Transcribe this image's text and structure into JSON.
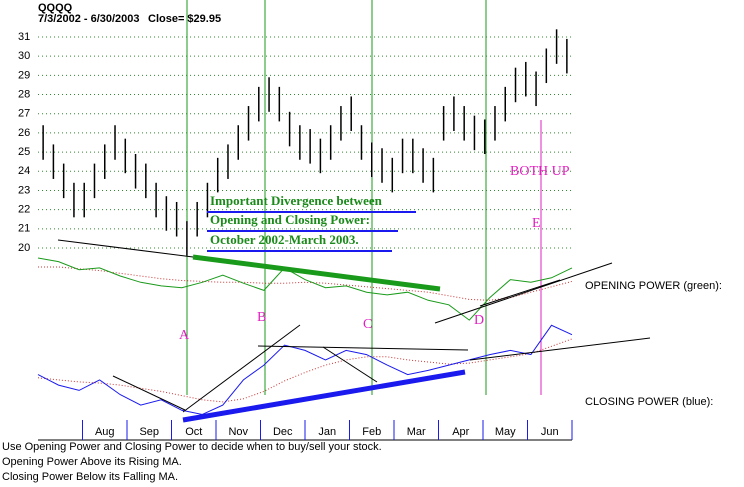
{
  "chart_data": {
    "type": "ohlc",
    "title": "QQQQ",
    "subtitle": "7/3/2002 - 6/30/2003",
    "close_label": "Close= $29.95",
    "high": [
      26.4,
      25.4,
      24.4,
      23.4,
      23.4,
      24.4,
      25.4,
      26.4,
      25.7,
      24.9,
      24.4,
      23.4,
      22.7,
      22.4,
      21.4,
      22.4,
      23.4,
      24.7,
      25.4,
      26.4,
      27.4,
      28.4,
      28.9,
      28.4,
      27.1,
      26.4,
      26.2,
      25.7,
      26.4,
      27.4,
      27.9,
      26.4,
      25.5,
      25.2,
      24.7,
      25.7,
      25.7,
      25.2,
      24.7,
      27.4,
      27.9,
      27.4,
      26.9,
      26.7,
      27.4,
      28.4,
      29.4,
      29.7,
      29.2,
      30.4,
      31.4,
      30.9
    ],
    "low": [
      24.6,
      23.6,
      22.6,
      21.6,
      21.6,
      22.6,
      23.6,
      24.6,
      23.9,
      23.1,
      22.6,
      21.6,
      20.9,
      20.6,
      19.6,
      20.6,
      21.6,
      22.9,
      23.6,
      24.6,
      25.6,
      26.6,
      27.1,
      26.6,
      25.3,
      24.6,
      24.4,
      23.9,
      24.6,
      25.6,
      26.1,
      24.6,
      23.7,
      23.4,
      22.9,
      23.9,
      23.9,
      23.4,
      22.9,
      25.6,
      26.1,
      25.6,
      25.1,
      24.9,
      25.6,
      26.6,
      27.6,
      27.9,
      27.4,
      28.6,
      29.6,
      29.1
    ],
    "color": "#000000",
    "ylim": [
      19.5,
      31.5
    ],
    "yticks": [
      20,
      21,
      22,
      23,
      24,
      25,
      26,
      27,
      28,
      29,
      30,
      31
    ],
    "grid": true,
    "grid_color": "#2e8b2e",
    "months": [
      "Aug",
      "Sep",
      "Oct",
      "Nov",
      "Dec",
      "Jan",
      "Feb",
      "Mar",
      "Apr",
      "May",
      "Jun"
    ],
    "opening_power": {
      "name": "OPENING POWER (green):",
      "color": "#1a9a1a",
      "ma_color": "#cc3333",
      "ylim": [
        0,
        100
      ],
      "values": [
        80,
        76,
        67,
        69,
        60,
        53,
        49,
        47,
        53,
        61,
        52,
        44,
        69,
        56,
        47,
        49,
        42,
        39,
        42,
        33,
        28,
        11,
        36,
        56,
        53,
        58,
        69
      ],
      "ma_values": [
        70,
        70,
        68,
        66,
        63,
        60,
        57,
        55,
        54,
        53,
        53,
        52,
        52,
        53,
        52,
        50,
        48,
        46,
        44,
        42,
        38,
        34,
        33,
        36,
        42,
        48,
        54
      ]
    },
    "closing_power": {
      "name": "CLOSING POWER (blue):",
      "color": "#1a1aee",
      "ma_color": "#cc3333",
      "ylim": [
        0,
        100
      ],
      "values": [
        48,
        38,
        33,
        43,
        29,
        19,
        24,
        14,
        10,
        19,
        43,
        57,
        76,
        71,
        62,
        71,
        67,
        57,
        48,
        52,
        57,
        62,
        67,
        71,
        67,
        95,
        86
      ],
      "ma_values": [
        45,
        43,
        41,
        40,
        38,
        35,
        32,
        28,
        24,
        22,
        25,
        32,
        42,
        50,
        57,
        62,
        65,
        65,
        62,
        60,
        58,
        59,
        62,
        65,
        68,
        75,
        82
      ]
    },
    "annotations": {
      "divergence": [
        "Important Divergence between",
        "Opening and Closing Power:",
        "October 2002-March 2003."
      ],
      "both_up": "BOTH UP",
      "points": [
        "A",
        "B",
        "C",
        "D",
        "E"
      ]
    },
    "notes": [
      "Use Opening Power and Closing Power to decide when to buy/sell your stock.",
      "Opening Power Above its Rising MA.",
      "Closing Power Below its Falling MA."
    ]
  }
}
